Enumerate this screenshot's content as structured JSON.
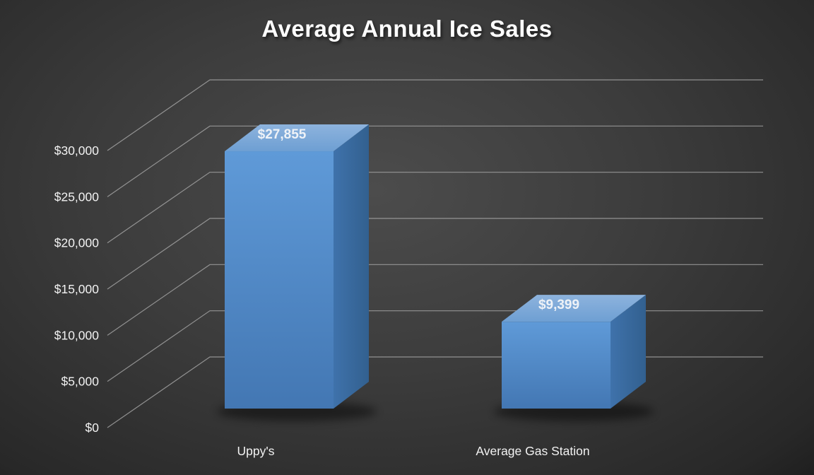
{
  "chart_data": {
    "type": "bar",
    "variant": "3d-column",
    "title": "Average Annual Ice Sales",
    "xlabel": "",
    "ylabel": "",
    "categories": [
      "Uppy's",
      "Average Gas Station"
    ],
    "values": [
      27855,
      9399
    ],
    "value_labels": [
      "$27,855",
      "$9,399"
    ],
    "ylim": [
      0,
      30000
    ],
    "ytick_interval": 5000,
    "ytick_labels": [
      "$0",
      "$5,000",
      "$10,000",
      "$15,000",
      "$20,000",
      "$25,000",
      "$30,000"
    ],
    "grid": true,
    "legend": false,
    "colors": {
      "background_center": "#4c4c4c",
      "background_edge": "#1f1f1f",
      "gridline": "#a8a8a8",
      "title_text": "#ffffff",
      "axis_text": "#f2f2f2",
      "value_label_text": "#eef2f7",
      "bar_front_top": "#5f9ad8",
      "bar_front_bottom": "#4377b3",
      "bar_top_back": "#8db3dd",
      "bar_top_front": "#6e9fd3",
      "bar_side_light": "#3f72ab",
      "bar_side_dark": "#32608f",
      "shadow": "#000000"
    }
  }
}
